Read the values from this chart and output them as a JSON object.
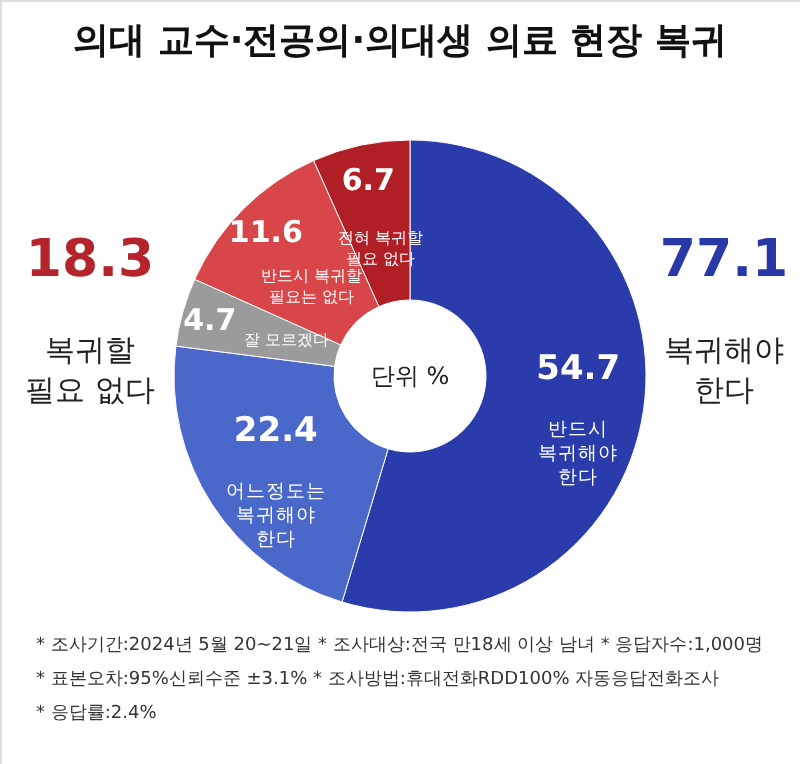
{
  "chart_data": {
    "type": "donut",
    "title": "의대 교수·전공의·의대생 의료 현장 복귀",
    "categories": [
      "반드시 복귀해야 한다",
      "어느정도는 복귀해야 한다",
      "잘 모르겠다",
      "반드시 복귀할 필요는 없다",
      "전혀 복귀할 필요 없다"
    ],
    "values": [
      54.7,
      22.4,
      4.7,
      11.6,
      6.7
    ],
    "colors": [
      "#2a3bab",
      "#4a68c9",
      "#9b9b9b",
      "#d8464a",
      "#b01f26"
    ],
    "data_labels": true,
    "legend": false,
    "annotations": [
      "18.3",
      "복귀할 필요 없다",
      "77.1",
      "복귀해야 한다",
      "단위 %",
      "* 조사기간:2024년 5월 20~21일  * 조사대상:전국 만18세 이상 남녀  * 응답자수:1,000명",
      "* 표본오차:95%신뢰수준 ±3.1%  * 조사방법:휴대전화RDD100% 자동응답전화조사",
      "* 응답률:2.4%"
    ]
  }
}
